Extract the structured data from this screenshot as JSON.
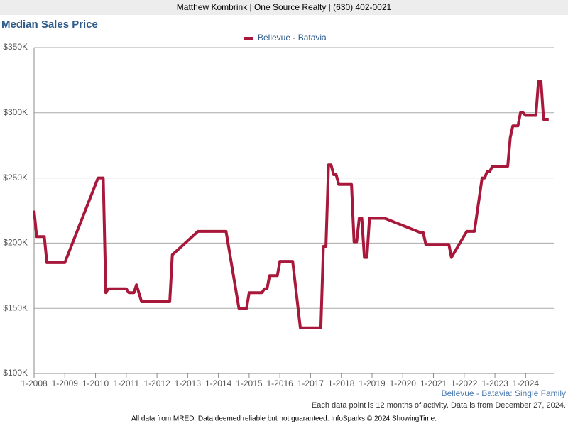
{
  "header": "Matthew Kombrink | One Source Realty | (630) 402-0021",
  "footer": "All data from MRED. Data deemed reliable but not guaranteed. InfoSparks © 2024 ShowingTime.",
  "chart_data": {
    "type": "line",
    "title": "Median Sales Price",
    "subtitle": "Bellevue - Batavia: Single Family",
    "note": "Each data point is 12 months of activity. Data is from December 27, 2024.",
    "x": [
      "1-2008",
      "2-2008",
      "5-2008",
      "6-2008",
      "1-2009",
      "2-2010",
      "4-2010",
      "5-2010",
      "6-2010",
      "1-2011",
      "2-2011",
      "4-2011",
      "5-2011",
      "7-2011",
      "6-2012",
      "7-2012",
      "5-2013",
      "4-2014",
      "9-2014",
      "12-2014",
      "1-2015",
      "6-2015",
      "7-2015",
      "8-2015",
      "9-2015",
      "12-2015",
      "1-2016",
      "6-2016",
      "9-2016",
      "5-2017",
      "6-2017",
      "7-2017",
      "8-2017",
      "9-2017",
      "10-2017",
      "11-2017",
      "12-2017",
      "5-2018",
      "6-2018",
      "7-2018",
      "8-2018",
      "9-2018",
      "10-2018",
      "11-2018",
      "12-2018",
      "6-2019",
      "8-2020",
      "9-2020",
      "10-2020",
      "7-2021",
      "8-2021",
      "2-2022",
      "5-2022",
      "8-2022",
      "9-2022",
      "10-2022",
      "11-2022",
      "12-2022",
      "6-2023",
      "7-2023",
      "8-2023",
      "10-2023",
      "11-2023",
      "12-2023",
      "1-2024",
      "5-2024",
      "6-2024",
      "7-2024",
      "8-2024",
      "10-2024"
    ],
    "series": [
      {
        "name": "Bellevue - Batavia",
        "color": "#a8183a",
        "values": [
          225000,
          205000,
          205000,
          185000,
          185000,
          250000,
          250000,
          162000,
          165000,
          165000,
          162000,
          162000,
          168000,
          155000,
          155000,
          191000,
          209000,
          209000,
          150000,
          150000,
          162000,
          162000,
          165000,
          165000,
          175000,
          175000,
          186000,
          186000,
          135000,
          135000,
          197500,
          197500,
          260000,
          260000,
          252500,
          252500,
          245000,
          245000,
          201000,
          201000,
          219000,
          219000,
          189000,
          189000,
          219000,
          219000,
          208000,
          208000,
          199000,
          199000,
          189000,
          209000,
          209000,
          250000,
          250000,
          255000,
          255000,
          259000,
          259000,
          281000,
          290000,
          290000,
          300000,
          300000,
          298000,
          298000,
          324000,
          324000,
          295000,
          295000
        ]
      }
    ],
    "xlim": [
      "1-2008",
      "12-2024"
    ],
    "xticks": [
      "1-2008",
      "1-2009",
      "1-2010",
      "1-2011",
      "1-2012",
      "1-2013",
      "1-2014",
      "1-2015",
      "1-2016",
      "1-2017",
      "1-2018",
      "1-2019",
      "1-2020",
      "1-2021",
      "1-2022",
      "1-2023",
      "1-2024"
    ],
    "ylim": [
      100000,
      350000
    ],
    "yticks": [
      {
        "value": 100000,
        "label": "$100K"
      },
      {
        "value": 150000,
        "label": "$150K"
      },
      {
        "value": 200000,
        "label": "$200K"
      },
      {
        "value": 250000,
        "label": "$250K"
      },
      {
        "value": 300000,
        "label": "$300K"
      },
      {
        "value": 350000,
        "label": "$350K"
      }
    ],
    "grid": true,
    "legend": "top"
  }
}
